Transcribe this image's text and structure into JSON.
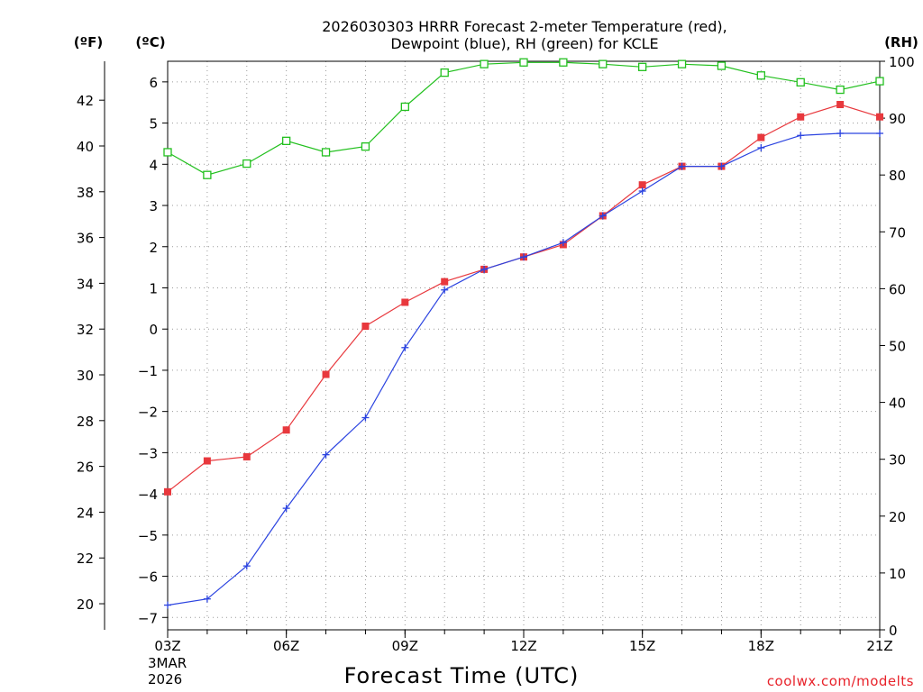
{
  "chart_data": {
    "type": "line",
    "title_line1": "2026030303 HRRR Forecast 2-meter Temperature (red),",
    "title_line2": "Dewpoint (blue), RH (green) for KCLE",
    "xlabel": "Forecast Time (UTC)",
    "date_line1": "3MAR",
    "date_line2": "2026",
    "credit": "coolwx.com/modelts",
    "unit_f": "(ºF)",
    "unit_c": "(ºC)",
    "unit_rh": "(RH)",
    "x_hours": [
      3,
      4,
      5,
      6,
      7,
      8,
      9,
      10,
      11,
      12,
      13,
      14,
      15,
      16,
      17,
      18,
      19,
      20,
      21
    ],
    "x_tick_hours": [
      3,
      6,
      9,
      12,
      15,
      18,
      21
    ],
    "x_tick_labels": [
      "03Z",
      "06Z",
      "09Z",
      "12Z",
      "15Z",
      "18Z",
      "21Z"
    ],
    "c_ylim": [
      -7.3,
      6.5
    ],
    "c_ticks": [
      -7,
      -6,
      -5,
      -4,
      -3,
      -2,
      -1,
      0,
      1,
      2,
      3,
      4,
      5,
      6
    ],
    "c_tick_labels": [
      "−7",
      "−6",
      "−5",
      "−4",
      "−3",
      "−2",
      "−1",
      "0",
      "1",
      "2",
      "3",
      "4",
      "5",
      "6"
    ],
    "f_ticks": [
      20,
      22,
      24,
      26,
      28,
      30,
      32,
      34,
      36,
      38,
      40,
      42
    ],
    "f_tick_labels": [
      "20",
      "22",
      "24",
      "26",
      "28",
      "30",
      "32",
      "34",
      "36",
      "38",
      "40",
      "42"
    ],
    "rh_ylim": [
      0,
      100
    ],
    "rh_ticks": [
      0,
      10,
      20,
      30,
      40,
      50,
      60,
      70,
      80,
      90,
      100
    ],
    "rh_tick_labels": [
      "0",
      "10",
      "20",
      "30",
      "40",
      "50",
      "60",
      "70",
      "80",
      "90",
      "100"
    ],
    "series": [
      {
        "name": "Temperature",
        "axis": "C",
        "color": "#e8383d",
        "marker": "filled-square",
        "values": [
          -3.95,
          -3.2,
          -3.1,
          -2.45,
          -1.1,
          0.07,
          0.65,
          1.15,
          1.45,
          1.75,
          2.05,
          2.75,
          3.5,
          3.95,
          3.95,
          4.65,
          5.15,
          5.45,
          5.15
        ]
      },
      {
        "name": "Dewpoint",
        "axis": "C",
        "color": "#2b43e0",
        "marker": "plus",
        "values": [
          -6.7,
          -6.55,
          -5.75,
          -4.35,
          -3.05,
          -2.15,
          -0.45,
          0.95,
          1.45,
          1.75,
          2.1,
          2.75,
          3.35,
          3.95,
          3.95,
          4.4,
          4.7,
          4.75,
          4.75
        ]
      },
      {
        "name": "RH",
        "axis": "RH",
        "color": "#22c01e",
        "marker": "open-square",
        "values": [
          84,
          80,
          82,
          86,
          84,
          85,
          92,
          98,
          99.5,
          99.8,
          99.8,
          99.5,
          99,
          99.5,
          99.2,
          97.5,
          96.3,
          95,
          96.5
        ]
      }
    ]
  }
}
